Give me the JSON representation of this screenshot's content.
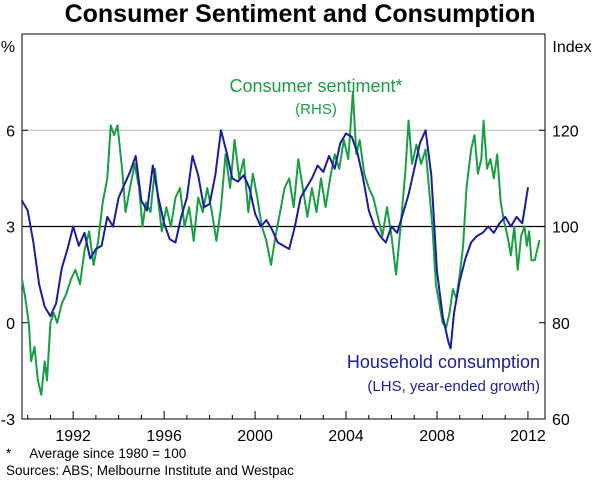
{
  "chart_data": {
    "type": "line",
    "title": "Consumer Sentiment and Consumption",
    "left_axis": {
      "unit": "%",
      "ylim": [
        -3,
        9
      ],
      "ticks": [
        "-3",
        "0",
        "3",
        "6"
      ],
      "tick_values": [
        -3,
        0,
        3,
        6
      ]
    },
    "right_axis": {
      "unit": "Index",
      "ylim": [
        60,
        140
      ],
      "ticks": [
        "60",
        "80",
        "100",
        "120"
      ],
      "tick_values": [
        60,
        80,
        100,
        120
      ]
    },
    "xlim": [
      1989.75,
      2012.75
    ],
    "x_ticks": [
      "1992",
      "1996",
      "2000",
      "2004",
      "2008",
      "2012"
    ],
    "x_tick_values": [
      1992,
      1996,
      2000,
      2004,
      2008,
      2012
    ],
    "gridlines_left": [
      3,
      6
    ],
    "reference_line_left": 3,
    "series": [
      {
        "name": "Consumer sentiment*",
        "sublabel": "(RHS)",
        "axis": "right",
        "color": "#1a9e45",
        "points": [
          [
            1989.75,
            89.0
          ],
          [
            1989.9,
            85.0
          ],
          [
            1990.05,
            80.0
          ],
          [
            1990.15,
            72.0
          ],
          [
            1990.3,
            75.0
          ],
          [
            1990.45,
            68.0
          ],
          [
            1990.6,
            65.0
          ],
          [
            1990.75,
            72.0
          ],
          [
            1990.85,
            68.0
          ],
          [
            1991.0,
            80.0
          ],
          [
            1991.15,
            82.0
          ],
          [
            1991.3,
            80.0
          ],
          [
            1991.5,
            84.0
          ],
          [
            1991.7,
            86.0
          ],
          [
            1991.9,
            89.0
          ],
          [
            1992.1,
            91.0
          ],
          [
            1992.3,
            88.0
          ],
          [
            1992.5,
            95.0
          ],
          [
            1992.7,
            99.0
          ],
          [
            1992.9,
            92.0
          ],
          [
            1993.1,
            97.0
          ],
          [
            1993.3,
            105.0
          ],
          [
            1993.5,
            110.0
          ],
          [
            1993.65,
            121.0
          ],
          [
            1993.8,
            119.0
          ],
          [
            1993.95,
            121.0
          ],
          [
            1994.15,
            112.0
          ],
          [
            1994.3,
            103.0
          ],
          [
            1994.5,
            108.0
          ],
          [
            1994.7,
            113.0
          ],
          [
            1994.9,
            108.0
          ],
          [
            1995.05,
            100.0
          ],
          [
            1995.2,
            105.0
          ],
          [
            1995.4,
            103.0
          ],
          [
            1995.6,
            112.0
          ],
          [
            1995.75,
            105.0
          ],
          [
            1995.9,
            99.0
          ],
          [
            1996.1,
            104.0
          ],
          [
            1996.3,
            100.0
          ],
          [
            1996.5,
            106.0
          ],
          [
            1996.7,
            108.0
          ],
          [
            1996.9,
            100.0
          ],
          [
            1997.1,
            104.0
          ],
          [
            1997.3,
            97.0
          ],
          [
            1997.5,
            106.0
          ],
          [
            1997.7,
            103.0
          ],
          [
            1997.9,
            108.0
          ],
          [
            1998.1,
            103.0
          ],
          [
            1998.3,
            97.0
          ],
          [
            1998.5,
            104.0
          ],
          [
            1998.7,
            115.0
          ],
          [
            1998.9,
            108.0
          ],
          [
            1999.1,
            118.0
          ],
          [
            1999.3,
            110.0
          ],
          [
            1999.5,
            114.0
          ],
          [
            1999.7,
            103.0
          ],
          [
            1999.9,
            111.0
          ],
          [
            2000.1,
            106.0
          ],
          [
            2000.3,
            100.0
          ],
          [
            2000.5,
            97.0
          ],
          [
            2000.7,
            92.0
          ],
          [
            2000.9,
            98.0
          ],
          [
            2001.1,
            103.0
          ],
          [
            2001.3,
            108.0
          ],
          [
            2001.5,
            110.0
          ],
          [
            2001.7,
            104.0
          ],
          [
            2001.9,
            114.0
          ],
          [
            2002.1,
            108.0
          ],
          [
            2002.3,
            102.0
          ],
          [
            2002.5,
            108.0
          ],
          [
            2002.7,
            103.0
          ],
          [
            2002.9,
            110.0
          ],
          [
            2003.1,
            104.0
          ],
          [
            2003.3,
            110.0
          ],
          [
            2003.5,
            115.0
          ],
          [
            2003.7,
            112.0
          ],
          [
            2003.9,
            118.0
          ],
          [
            2004.1,
            114.0
          ],
          [
            2004.3,
            128.0
          ],
          [
            2004.45,
            115.0
          ],
          [
            2004.6,
            118.0
          ],
          [
            2004.8,
            111.0
          ],
          [
            2005.0,
            108.0
          ],
          [
            2005.2,
            106.0
          ],
          [
            2005.4,
            102.0
          ],
          [
            2005.6,
            98.0
          ],
          [
            2005.8,
            104.0
          ],
          [
            2006.0,
            98.0
          ],
          [
            2006.2,
            90.0
          ],
          [
            2006.4,
            100.0
          ],
          [
            2006.6,
            111.0
          ],
          [
            2006.75,
            122.0
          ],
          [
            2006.9,
            113.0
          ],
          [
            2007.1,
            117.0
          ],
          [
            2007.3,
            113.0
          ],
          [
            2007.5,
            116.0
          ],
          [
            2007.65,
            108.0
          ],
          [
            2007.8,
            100.0
          ],
          [
            2007.95,
            88.0
          ],
          [
            2008.1,
            84.0
          ],
          [
            2008.25,
            80.0
          ],
          [
            2008.4,
            79.0
          ],
          [
            2008.55,
            82.0
          ],
          [
            2008.7,
            87.0
          ],
          [
            2008.85,
            85.0
          ],
          [
            2009.0,
            90.0
          ],
          [
            2009.15,
            96.0
          ],
          [
            2009.3,
            108.0
          ],
          [
            2009.5,
            116.0
          ],
          [
            2009.65,
            119.0
          ],
          [
            2009.8,
            111.0
          ],
          [
            2009.95,
            114.0
          ],
          [
            2010.05,
            122.0
          ],
          [
            2010.2,
            112.0
          ],
          [
            2010.35,
            114.0
          ],
          [
            2010.5,
            110.0
          ],
          [
            2010.65,
            115.0
          ],
          [
            2010.8,
            105.0
          ],
          [
            2010.95,
            101.0
          ],
          [
            2011.1,
            98.0
          ],
          [
            2011.25,
            94.0
          ],
          [
            2011.4,
            100.0
          ],
          [
            2011.55,
            91.0
          ],
          [
            2011.7,
            98.0
          ],
          [
            2011.85,
            100.0
          ],
          [
            2011.95,
            96.0
          ],
          [
            2012.05,
            99.0
          ],
          [
            2012.15,
            93.0
          ],
          [
            2012.3,
            93.0
          ],
          [
            2012.4,
            95.0
          ],
          [
            2012.5,
            97.0
          ]
        ]
      },
      {
        "name": "Household consumption",
        "sublabel": "(LHS, year-ended growth)",
        "axis": "left",
        "color": "#1c1c9c",
        "points": [
          [
            1989.75,
            3.8
          ],
          [
            1990.0,
            3.5
          ],
          [
            1990.25,
            2.5
          ],
          [
            1990.5,
            1.2
          ],
          [
            1990.75,
            0.5
          ],
          [
            1991.0,
            0.2
          ],
          [
            1991.25,
            0.6
          ],
          [
            1991.5,
            1.7
          ],
          [
            1991.75,
            2.3
          ],
          [
            1992.0,
            3.0
          ],
          [
            1992.25,
            2.4
          ],
          [
            1992.5,
            2.8
          ],
          [
            1992.75,
            2.0
          ],
          [
            1993.0,
            2.3
          ],
          [
            1993.25,
            2.4
          ],
          [
            1993.5,
            3.3
          ],
          [
            1993.75,
            3.0
          ],
          [
            1994.0,
            3.9
          ],
          [
            1994.25,
            4.3
          ],
          [
            1994.5,
            4.7
          ],
          [
            1994.75,
            5.2
          ],
          [
            1995.0,
            3.8
          ],
          [
            1995.25,
            3.5
          ],
          [
            1995.5,
            4.9
          ],
          [
            1995.75,
            3.9
          ],
          [
            1996.0,
            3.1
          ],
          [
            1996.25,
            2.6
          ],
          [
            1996.5,
            2.5
          ],
          [
            1996.75,
            3.3
          ],
          [
            1997.0,
            3.9
          ],
          [
            1997.25,
            5.2
          ],
          [
            1997.5,
            4.6
          ],
          [
            1997.75,
            3.6
          ],
          [
            1998.0,
            3.7
          ],
          [
            1998.25,
            4.6
          ],
          [
            1998.5,
            6.0
          ],
          [
            1998.75,
            5.3
          ],
          [
            1999.0,
            4.5
          ],
          [
            1999.25,
            4.4
          ],
          [
            1999.5,
            4.6
          ],
          [
            1999.75,
            4.2
          ],
          [
            2000.0,
            3.4
          ],
          [
            2000.25,
            3.0
          ],
          [
            2000.5,
            3.2
          ],
          [
            2000.75,
            2.9
          ],
          [
            2001.0,
            2.5
          ],
          [
            2001.25,
            2.4
          ],
          [
            2001.5,
            2.3
          ],
          [
            2001.75,
            3.0
          ],
          [
            2002.0,
            3.9
          ],
          [
            2002.25,
            4.2
          ],
          [
            2002.5,
            4.5
          ],
          [
            2002.75,
            4.9
          ],
          [
            2003.0,
            4.7
          ],
          [
            2003.25,
            5.2
          ],
          [
            2003.5,
            4.8
          ],
          [
            2003.75,
            5.6
          ],
          [
            2004.0,
            5.9
          ],
          [
            2004.25,
            5.8
          ],
          [
            2004.5,
            5.3
          ],
          [
            2004.75,
            4.5
          ],
          [
            2005.0,
            3.5
          ],
          [
            2005.25,
            3.0
          ],
          [
            2005.5,
            2.7
          ],
          [
            2005.75,
            2.5
          ],
          [
            2006.0,
            3.0
          ],
          [
            2006.25,
            2.8
          ],
          [
            2006.5,
            3.4
          ],
          [
            2006.75,
            4.0
          ],
          [
            2007.0,
            4.8
          ],
          [
            2007.25,
            5.6
          ],
          [
            2007.5,
            6.0
          ],
          [
            2007.75,
            4.6
          ],
          [
            2008.0,
            1.6
          ],
          [
            2008.25,
            0.2
          ],
          [
            2008.5,
            -0.6
          ],
          [
            2008.6,
            -0.8
          ],
          [
            2008.75,
            0.3
          ],
          [
            2009.0,
            1.3
          ],
          [
            2009.25,
            2.0
          ],
          [
            2009.5,
            2.5
          ],
          [
            2009.75,
            2.7
          ],
          [
            2010.0,
            2.8
          ],
          [
            2010.25,
            3.0
          ],
          [
            2010.5,
            2.8
          ],
          [
            2010.75,
            3.1
          ],
          [
            2011.0,
            3.3
          ],
          [
            2011.25,
            3.0
          ],
          [
            2011.5,
            3.3
          ],
          [
            2011.75,
            3.1
          ],
          [
            2012.0,
            4.2
          ]
        ]
      }
    ],
    "footnotes": [
      "*     Average since 1980 = 100",
      "Sources: ABS; Melbourne Institute and Westpac"
    ]
  }
}
